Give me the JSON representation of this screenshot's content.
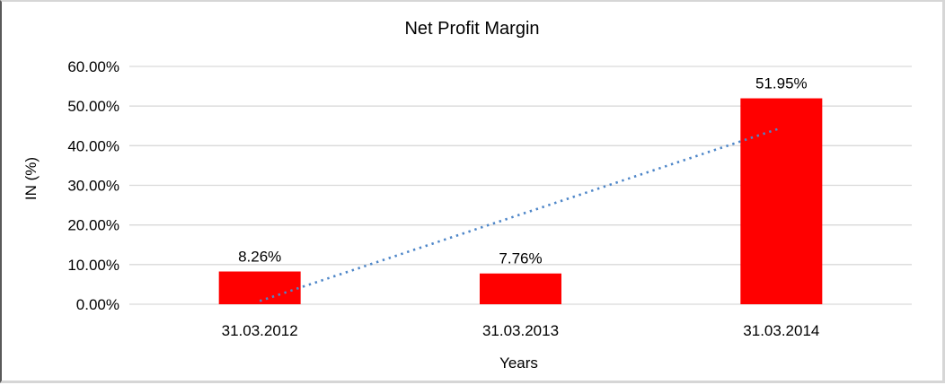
{
  "chart_data": {
    "type": "bar",
    "title": "Net Profit Margin",
    "xlabel": "Years",
    "ylabel": "IN (%)",
    "categories": [
      "31.03.2012",
      "31.03.2013",
      "31.03.2014"
    ],
    "values": [
      8.26,
      7.76,
      51.95
    ],
    "value_labels": [
      "8.26%",
      "7.76%",
      "51.95%"
    ],
    "y_tick_labels": [
      "0.00%",
      "10.00%",
      "20.00%",
      "30.00%",
      "40.00%",
      "50.00%",
      "60.00%"
    ],
    "y_tick_values": [
      0,
      10,
      20,
      30,
      40,
      50,
      60
    ],
    "ylim": [
      0,
      60
    ],
    "grid": true,
    "legend_position": "none",
    "colors": {
      "bar": "#ff0000",
      "trendline": "#4e86c8",
      "gridline": "#d9d9d9",
      "text": "#000000"
    },
    "trendline": {
      "style": "dotted",
      "fit": "linear",
      "approx_start_value": 0.81,
      "approx_end_value": 44.5
    }
  }
}
